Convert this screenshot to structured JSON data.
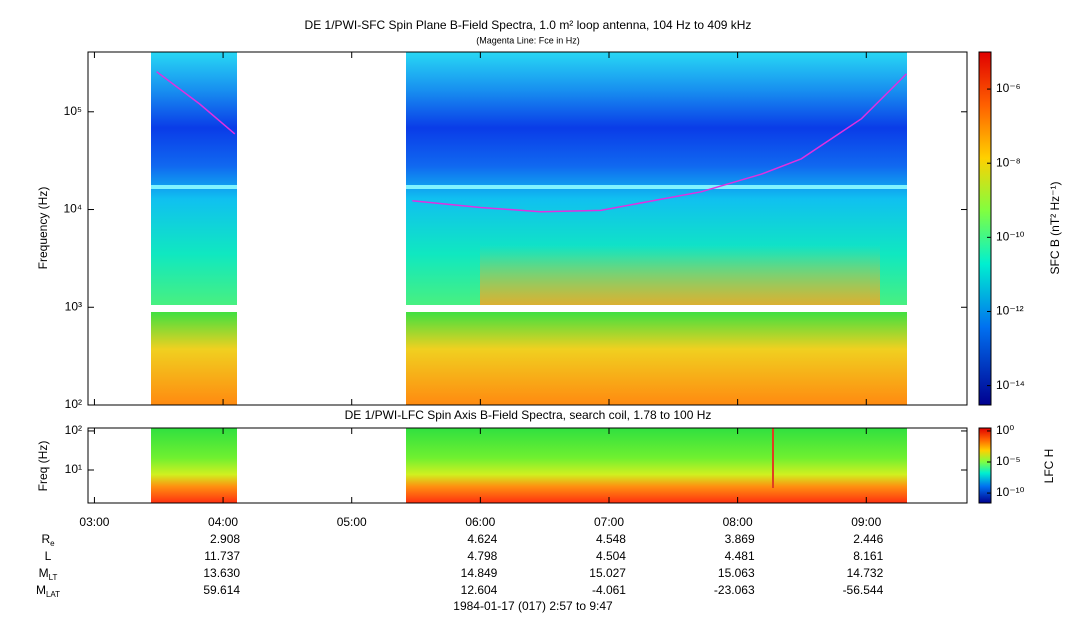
{
  "chart_data": [
    {
      "type": "line",
      "title": "DE 1/PWI-SFC  Spin Plane B-Field Spectra, 1.0 m² loop antenna, 104 Hz to 409 kHz",
      "subtitle": "(Magenta Line: Fce in Hz)",
      "ylabel": "Frequency (Hz)",
      "log_y": true,
      "xlim": [
        2.95,
        9.783
      ],
      "ylim": [
        100,
        409000
      ],
      "yticks": [
        {
          "value": 100,
          "label": "10²"
        },
        {
          "value": 1000,
          "label": "10³"
        },
        {
          "value": 10000,
          "label": "10⁴"
        },
        {
          "value": 100000,
          "label": "10⁵"
        }
      ],
      "series": [
        {
          "color": "#e030e0",
          "x": [
            3.483,
            3.818,
            4.091,
            null,
            5.471,
            6.0,
            6.468,
            6.936,
            7.716,
            8.183,
            8.495,
            8.963,
            9.313
          ],
          "values": [
            257000,
            120000,
            59400,
            null,
            12300,
            10500,
            9500,
            9800,
            15200,
            23000,
            33000,
            85000,
            245000
          ]
        }
      ],
      "colorbar": {
        "label": "SFC B (nT² Hz⁻¹)",
        "log": true,
        "zlim": [
          3e-15,
          1e-05
        ],
        "ticks": [
          {
            "value": 1e-06,
            "label": "10⁻⁶"
          },
          {
            "value": 1e-08,
            "label": "10⁻⁸"
          },
          {
            "value": 1e-10,
            "label": "10⁻¹⁰"
          },
          {
            "value": 1e-12,
            "label": "10⁻¹²"
          },
          {
            "value": 1e-14,
            "label": "10⁻¹⁴"
          }
        ]
      }
    },
    {
      "type": "spectrogram",
      "title": "DE 1/PWI-LFC  Spin Axis B-Field Spectra, search coil, 1.78 to 100 Hz",
      "ylabel": "Freq (Hz)",
      "log_y": true,
      "xlim": [
        2.95,
        9.783
      ],
      "ylim": [
        1.43,
        119
      ],
      "yticks": [
        {
          "value": 10,
          "label": "10¹"
        },
        {
          "value": 100,
          "label": "10²"
        }
      ],
      "xticks": [
        {
          "value": 3,
          "label": "03:00"
        },
        {
          "value": 4,
          "label": "04:00"
        },
        {
          "value": 5,
          "label": "05:00"
        },
        {
          "value": 6,
          "label": "06:00"
        },
        {
          "value": 7,
          "label": "07:00"
        },
        {
          "value": 8,
          "label": "08:00"
        },
        {
          "value": 9,
          "label": "09:00"
        }
      ],
      "colorbar": {
        "label": "LFC H",
        "log": true,
        "zlim": [
          2.5e-12,
          3
        ],
        "ticks": [
          {
            "value": 1,
            "label": "10⁰"
          },
          {
            "value": 1e-05,
            "label": "10⁻⁵"
          },
          {
            "value": 1e-10,
            "label": "10⁻¹⁰"
          }
        ]
      },
      "ephemeris": [
        {
          "label": "R",
          "sub": "e",
          "values": [
            null,
            "2.908",
            null,
            "4.624",
            "4.548",
            "3.869",
            "2.446"
          ]
        },
        {
          "label": "L",
          "values": [
            null,
            "11.737",
            null,
            "4.798",
            "4.504",
            "4.481",
            "8.161"
          ]
        },
        {
          "label": "M",
          "sub": "LT",
          "values": [
            null,
            "13.630",
            null,
            "14.849",
            "15.027",
            "15.063",
            "14.732"
          ]
        },
        {
          "label": "M",
          "sub": "LAT",
          "values": [
            null,
            "59.614",
            null,
            "12.604",
            "-4.061",
            "-23.063",
            "-56.544"
          ]
        }
      ],
      "footer": "1984-01-17 (017) 2:57 to 9:47"
    }
  ]
}
